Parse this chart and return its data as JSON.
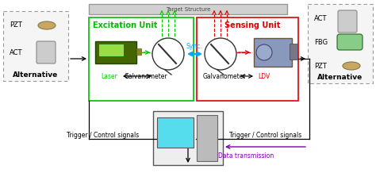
{
  "title": "Target Structure",
  "excitation_label": "Excitation Unit",
  "sensing_label": "Sensing Unit",
  "laser_label": "Laser",
  "galv_label1": "Galvanometer",
  "galv_label2": "Galvanometer",
  "ldv_label": "LDV",
  "sync_label": "Sync.",
  "trigger_left": "Trigger / Control signals",
  "trigger_right": "Trigger / Control signals",
  "data_trans": "Data transmission",
  "alt_left": "Alternative",
  "alt_right": "Alternative",
  "pzt_left": "PZT",
  "act_left": "ACT",
  "act_right": "ACT",
  "fbg_right": "FBG",
  "pzt_right": "PZT",
  "excitation_color": "#00bb00",
  "sensing_color": "#dd0000",
  "sync_color": "#00aaff",
  "laser_color": "#00cc00",
  "ldv_color": "#dd0000",
  "data_color": "#7700bb",
  "arrow_color": "#000000",
  "green_beam": "#00cc00",
  "red_beam": "#dd0000"
}
